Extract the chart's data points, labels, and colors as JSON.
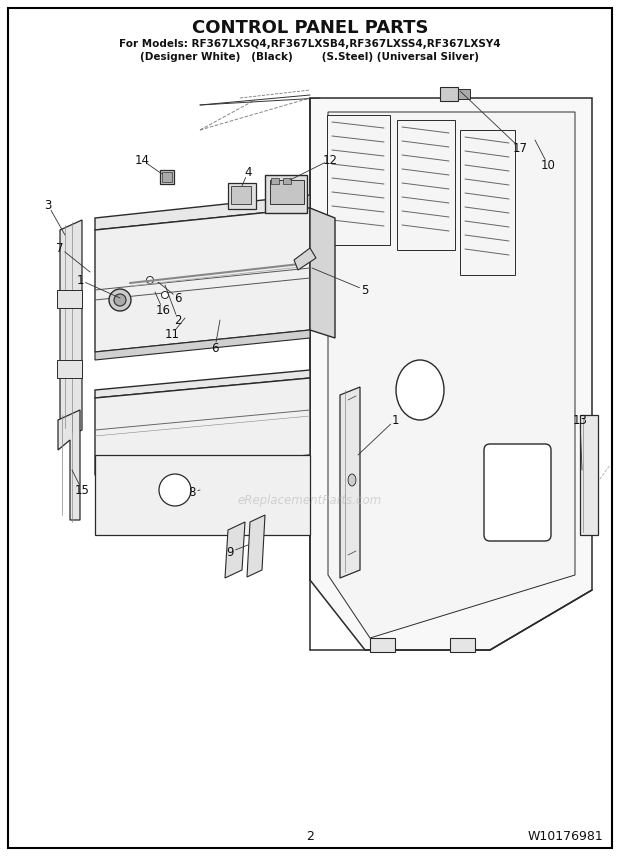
{
  "title": "CONTROL PANEL PARTS",
  "subtitle1": "For Models: RF367LXSQ4,RF367LXSB4,RF367LXSS4,RF367LXSY4",
  "subtitle2": "(Designer White)   (Black)        (S.Steel) (Universal Silver)",
  "page_number": "2",
  "part_number": "W10176981",
  "background_color": "#ffffff",
  "text_color": "#000000",
  "watermark": "eReplacementParts.com",
  "figsize": [
    6.2,
    8.56
  ],
  "dpi": 100
}
